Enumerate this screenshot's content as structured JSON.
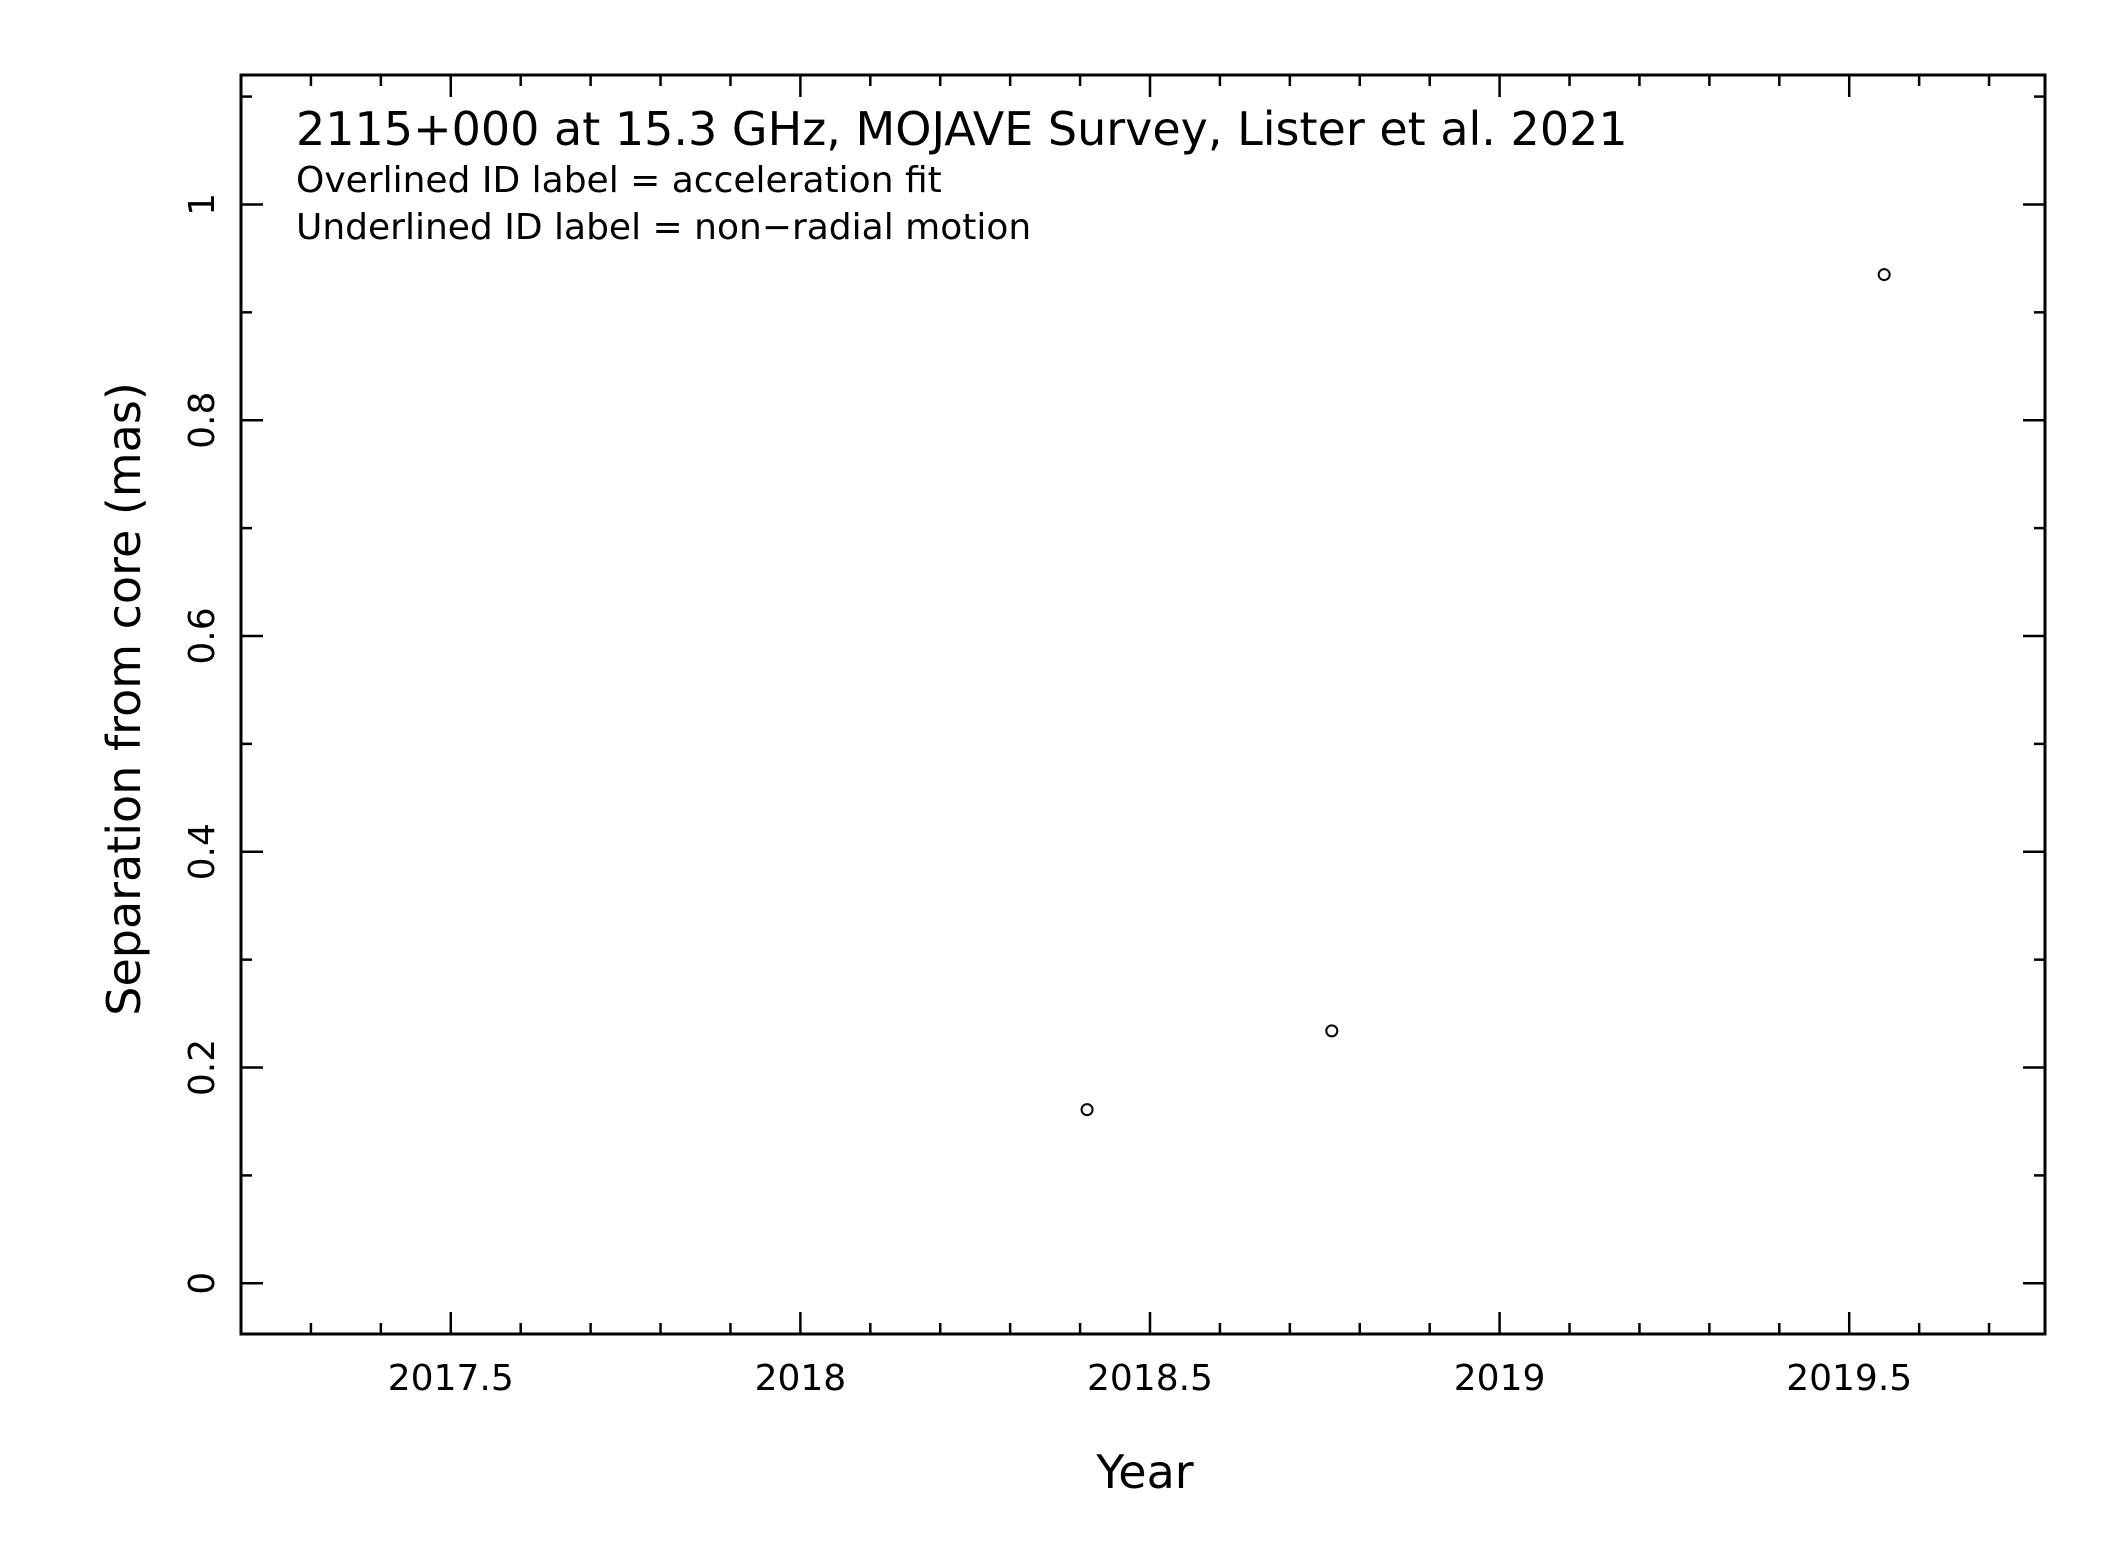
{
  "chart_data": {
    "type": "scatter",
    "title": "2115+000 at 15.3 GHz, MOJAVE Survey, Lister et al. 2021",
    "notes": [
      "Overlined ID label = acceleration fit",
      "Underlined ID label = non−radial motion"
    ],
    "xlabel": "Year",
    "ylabel": "Separation from core (mas)",
    "xlim": [
      2017.2,
      2019.78
    ],
    "ylim": [
      -0.047,
      1.12
    ],
    "x_ticks": [
      2017.5,
      2018,
      2018.5,
      2019,
      2019.5
    ],
    "x_tick_labels": [
      "2017.5",
      "2018",
      "2018.5",
      "2019",
      "2019.5"
    ],
    "x_minor_step": 0.1,
    "y_ticks": [
      0,
      0.2,
      0.4,
      0.6,
      0.8,
      1
    ],
    "y_tick_labels": [
      "0",
      "0.2",
      "0.4",
      "0.6",
      "0.8",
      "1"
    ],
    "y_minor_step": 0.1,
    "grid": false,
    "series": [
      {
        "marker": "open-circle",
        "color": "#000000",
        "points": [
          {
            "x": 2018.41,
            "y": 0.161
          },
          {
            "x": 2018.76,
            "y": 0.234
          },
          {
            "x": 2019.55,
            "y": 0.935
          }
        ]
      }
    ]
  }
}
